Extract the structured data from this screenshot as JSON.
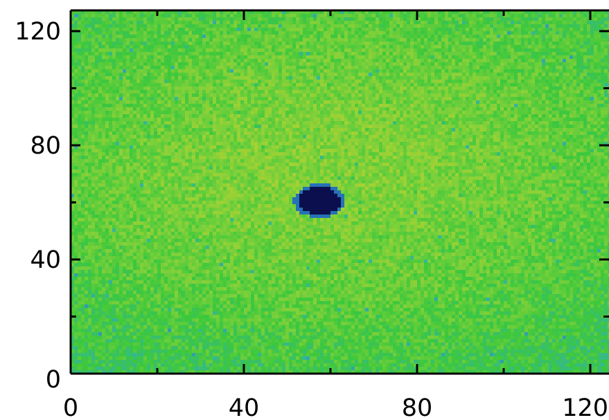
{
  "chart_data": {
    "type": "heatmap",
    "title": "",
    "xlabel": "",
    "ylabel": "",
    "xlim": [
      0,
      124
    ],
    "ylim": [
      0,
      128
    ],
    "grid": false,
    "x_ticks": [
      {
        "value": 0,
        "label": "0"
      },
      {
        "value": 40,
        "label": "40"
      },
      {
        "value": 80,
        "label": "80"
      },
      {
        "value": 120,
        "label": "120"
      }
    ],
    "y_ticks": [
      {
        "value": 0,
        "label": "0"
      },
      {
        "value": 40,
        "label": "40"
      },
      {
        "value": 80,
        "label": "80"
      },
      {
        "value": 120,
        "label": "120"
      }
    ],
    "x_minor_ticks": [
      20,
      60,
      100
    ],
    "y_minor_ticks": [
      20,
      60,
      100
    ],
    "field": {
      "center_x": 60,
      "center_y": 72,
      "sigma_x": 75,
      "sigma_y": 60,
      "peak_level": 0.72,
      "edge_level": 0.44,
      "noise": 0.09
    },
    "spot": {
      "center_x": 57.5,
      "center_y": 60.5,
      "radius_x": 5.7,
      "radius_y": 5.7,
      "level": 0.02
    },
    "colors": {
      "colormap": [
        "#1a1466",
        "#1e4fa8",
        "#2d8fc1",
        "#33b5a0",
        "#3cc83c",
        "#7fd03a",
        "#bcd22e",
        "#f2c42b"
      ],
      "spot": "#0b0f4d",
      "axis": "#000000"
    }
  }
}
